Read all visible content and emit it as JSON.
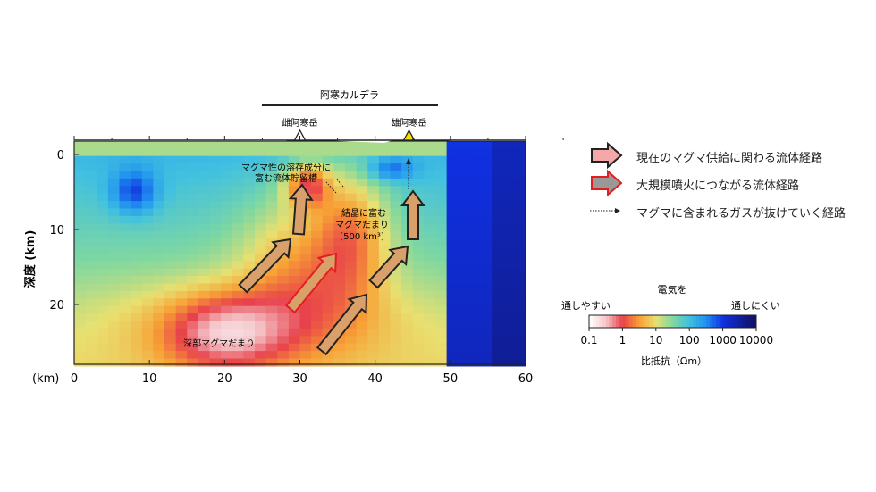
{
  "caldera_label": "阿寒カルデラ",
  "volcanoes": [
    {
      "name": "雌阿寒岳",
      "x_km": 30,
      "color": "#ffffff"
    },
    {
      "name": "雄阿寒岳",
      "x_km": 44.5,
      "color": "#f5e000"
    }
  ],
  "axes": {
    "ylabel": "深度 (km)",
    "xunit": "(km)",
    "xticks": [
      "0",
      "10",
      "20",
      "30",
      "40",
      "50",
      "60"
    ],
    "yticks": [
      "0",
      "10",
      "20"
    ]
  },
  "annotations": {
    "reservoir": [
      "マグマ性の溶存成分に",
      "富む流体貯留槽"
    ],
    "crystal_magma": [
      "結晶に富む",
      "マグマだまり",
      "[500 km³]"
    ],
    "deep_magma": "深部マグマだまり"
  },
  "legend": {
    "current_path": "現在のマグマ供給に関わる流体経路",
    "eruption_path": "大規模噴火につながる流体経路",
    "gas_path": "マグマに含まれるガスが抜けていく経路"
  },
  "colorbar": {
    "title": "電気を",
    "left_label": "通しやすい",
    "right_label": "通しにくい",
    "ticks": [
      "0.1",
      "1",
      "10",
      "100",
      "1000",
      "10000"
    ],
    "unit_label": "比抵抗（Ωm）",
    "colors": [
      "#ffffff",
      "#f4c8cc",
      "#e8404a",
      "#f7a035",
      "#e8e070",
      "#80d8a0",
      "#40c0e0",
      "#2090f0",
      "#1030e0",
      "#101060"
    ]
  }
}
